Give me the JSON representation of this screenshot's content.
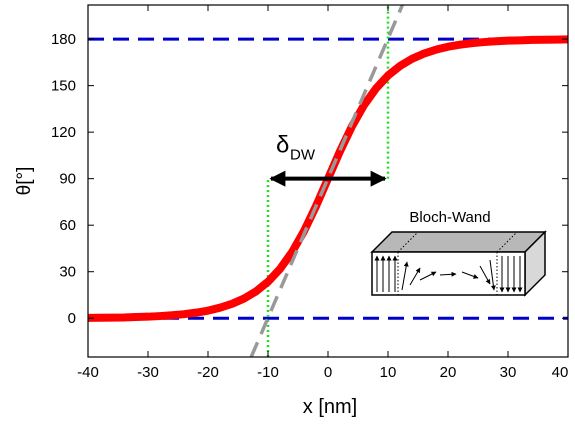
{
  "chart_data": {
    "type": "line",
    "xlabel": "x [nm]",
    "ylabel": "θ[°]",
    "xlim": [
      -40,
      40
    ],
    "ylim": [
      -25,
      202
    ],
    "xticks": [
      -40,
      -30,
      -20,
      -10,
      0,
      10,
      20,
      30,
      40
    ],
    "yticks": [
      0,
      30,
      60,
      90,
      120,
      150,
      180
    ],
    "series": [
      {
        "color": "#0000cc",
        "style": "dashed",
        "width": 3,
        "x": [
          -40,
          40
        ],
        "values": [
          0,
          0
        ]
      },
      {
        "color": "#0000cc",
        "style": "dashed",
        "width": 3,
        "x": [
          -40,
          40
        ],
        "values": [
          180,
          180
        ]
      },
      {
        "color": "#22dd22",
        "style": "dotted",
        "width": 2.5,
        "x": [
          -10,
          -10
        ],
        "values": [
          -25,
          90
        ]
      },
      {
        "color": "#22dd22",
        "style": "dotted",
        "width": 2.5,
        "x": [
          10,
          10
        ],
        "values": [
          90,
          202
        ]
      },
      {
        "color": "#ff0000",
        "style": "solid",
        "width": 8,
        "x": [
          -40,
          -38,
          -36,
          -34,
          -32,
          -30,
          -28,
          -26,
          -24,
          -22,
          -20,
          -18,
          -16,
          -14,
          -12,
          -10,
          -8,
          -6,
          -4,
          -2,
          0,
          2,
          4,
          6,
          8,
          10,
          12,
          14,
          16,
          18,
          20,
          22,
          24,
          26,
          28,
          30,
          32,
          34,
          36,
          38,
          40
        ],
        "values": [
          0.2,
          0.3,
          0.4,
          0.5,
          0.8,
          1.0,
          1.4,
          1.9,
          2.6,
          3.6,
          4.9,
          6.8,
          9.3,
          12.7,
          17.3,
          23.5,
          31.8,
          42.6,
          56.2,
          72.3,
          90,
          107.7,
          123.8,
          137.4,
          148.2,
          156.5,
          162.7,
          167.3,
          170.7,
          173.2,
          175.1,
          176.4,
          177.4,
          178.1,
          178.6,
          179.0,
          179.2,
          179.5,
          179.6,
          179.7,
          179.8
        ]
      },
      {
        "color": "#999999",
        "style": "dashed",
        "width": 3.5,
        "x": [
          -12.8,
          12.4
        ],
        "values": [
          -25,
          202
        ]
      }
    ],
    "arrow": {
      "x": [
        -10,
        10
      ],
      "y": 90,
      "text": "δ",
      "subscript": "DW"
    },
    "inset_label": "Bloch-Wand"
  }
}
